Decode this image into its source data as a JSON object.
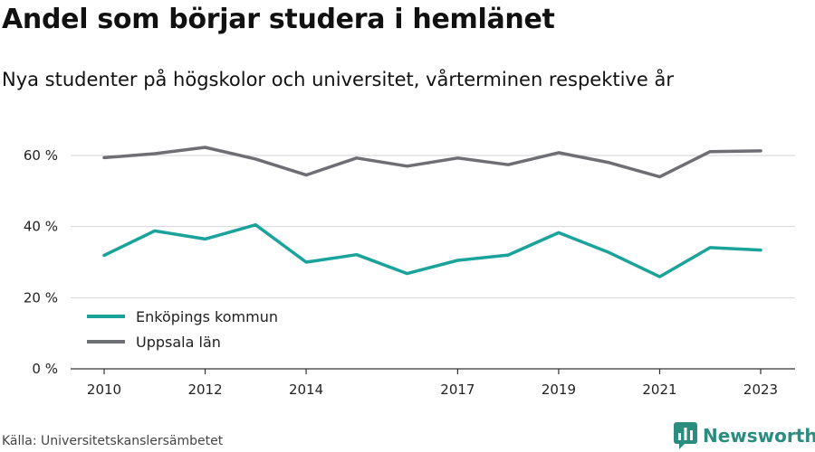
{
  "title": "Andel som börjar studera i hemlänet",
  "subtitle": "Nya studenter på högskolor och universitet, vårterminen respektive år",
  "source": "Källa: Universitetskanslersämbetet",
  "brand": {
    "name": "Newsworthy",
    "color": "#2b8c80",
    "icon": "newsworthy-logo-icon"
  },
  "chart_data": {
    "type": "line",
    "title": "",
    "xlabel": "",
    "ylabel": "",
    "x": [
      2010,
      2011,
      2012,
      2013,
      2014,
      2015,
      2016,
      2017,
      2018,
      2019,
      2020,
      2021,
      2022,
      2023
    ],
    "x_tick_labels": [
      "2010",
      "2012",
      "2014",
      "2017",
      "2019",
      "2021",
      "2023"
    ],
    "y_tick_labels": [
      "0 %",
      "20 %",
      "40 %",
      "60 %"
    ],
    "ylim": [
      0,
      60
    ],
    "grid": true,
    "legend_position": "bottom-left",
    "series": [
      {
        "name": "Enköpings kommun",
        "color": "#1aa39a",
        "values": [
          31.9,
          38.8,
          36.5,
          40.5,
          30.0,
          32.1,
          26.8,
          30.5,
          32.0,
          38.3,
          32.7,
          25.9,
          34.1,
          33.4
        ]
      },
      {
        "name": "Uppsala län",
        "color": "#6e6e75",
        "values": [
          59.4,
          60.5,
          62.3,
          59.0,
          54.5,
          59.3,
          57.0,
          59.3,
          57.4,
          60.8,
          58.0,
          54.0,
          61.1,
          61.3
        ]
      }
    ]
  }
}
